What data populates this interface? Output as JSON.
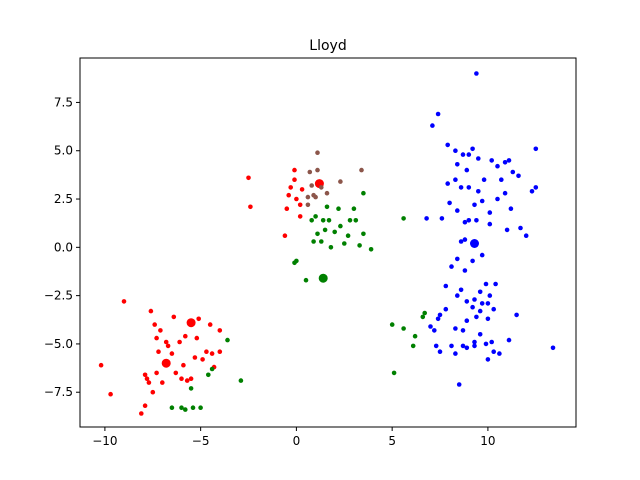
{
  "chart_data": {
    "type": "scatter",
    "title": "Lloyd",
    "xlabel": "",
    "ylabel": "",
    "xlim": [
      -11.3,
      14.6
    ],
    "ylim": [
      -9.3,
      9.8
    ],
    "xticks": [
      -10,
      -5,
      0,
      5,
      10
    ],
    "yticks": [
      -7.5,
      -5.0,
      -2.5,
      0.0,
      2.5,
      5.0,
      7.5
    ],
    "xtick_labels": [
      "−10",
      "−5",
      "0",
      "5",
      "10"
    ],
    "ytick_labels": [
      "−7.5",
      "−5.0",
      "−2.5",
      "0.0",
      "2.5",
      "5.0",
      "7.5"
    ],
    "grid": false,
    "series": [
      {
        "color": "#ff0000",
        "points": [
          [
            -9.0,
            -2.8
          ],
          [
            -10.2,
            -6.1
          ],
          [
            -9.7,
            -7.6
          ],
          [
            -8.1,
            -8.6
          ],
          [
            -7.9,
            -8.2
          ],
          [
            -7.9,
            -6.6
          ],
          [
            -7.7,
            -7.0
          ],
          [
            -7.5,
            -7.5
          ],
          [
            -7.8,
            -6.8
          ],
          [
            -7.6,
            -3.3
          ],
          [
            -7.4,
            -4.0
          ],
          [
            -7.3,
            -4.7
          ],
          [
            -7.2,
            -5.4
          ],
          [
            -7.3,
            -6.5
          ],
          [
            -7.0,
            -7.0
          ],
          [
            -7.1,
            -4.3
          ],
          [
            -6.8,
            -4.9
          ],
          [
            -6.5,
            -5.5
          ],
          [
            -6.4,
            -3.6
          ],
          [
            -6.7,
            -5.1
          ],
          [
            -6.3,
            -6.5
          ],
          [
            -6.0,
            -6.8
          ],
          [
            -5.9,
            -6.1
          ],
          [
            -6.1,
            -4.9
          ],
          [
            -5.8,
            -4.6
          ],
          [
            -5.7,
            -6.9
          ],
          [
            -5.5,
            -6.8
          ],
          [
            -5.3,
            -5.7
          ],
          [
            -5.2,
            -4.7
          ],
          [
            -5.1,
            -3.7
          ],
          [
            -4.9,
            -5.8
          ],
          [
            -4.7,
            -5.4
          ],
          [
            -4.5,
            -4.0
          ],
          [
            -4.4,
            -5.5
          ],
          [
            -4.3,
            -6.2
          ],
          [
            -4.0,
            -5.4
          ],
          [
            -4.0,
            -4.3
          ],
          [
            -2.5,
            3.6
          ],
          [
            -2.4,
            2.1
          ],
          [
            -0.6,
            0.6
          ],
          [
            -0.4,
            2.7
          ],
          [
            -0.5,
            2.0
          ],
          [
            -0.3,
            3.1
          ],
          [
            -0.1,
            4.0
          ],
          [
            0.0,
            2.5
          ],
          [
            0.2,
            1.6
          ],
          [
            0.2,
            2.2
          ],
          [
            0.3,
            3.0
          ],
          [
            -0.1,
            3.5
          ]
        ],
        "centroids": [
          [
            -5.5,
            -3.9
          ],
          [
            -6.8,
            -6.0
          ],
          [
            1.2,
            3.3
          ]
        ]
      },
      {
        "color": "#008000",
        "points": [
          [
            0.0,
            -0.7
          ],
          [
            -0.1,
            -0.8
          ],
          [
            0.5,
            -1.7
          ],
          [
            0.8,
            1.4
          ],
          [
            0.9,
            0.3
          ],
          [
            1.0,
            1.6
          ],
          [
            1.1,
            0.7
          ],
          [
            1.3,
            0.3
          ],
          [
            1.4,
            1.4
          ],
          [
            1.5,
            0.9
          ],
          [
            1.6,
            2.1
          ],
          [
            1.7,
            1.4
          ],
          [
            1.8,
            0.0
          ],
          [
            2.0,
            0.8
          ],
          [
            2.2,
            2.0
          ],
          [
            2.3,
            1.1
          ],
          [
            2.5,
            0.2
          ],
          [
            2.7,
            0.6
          ],
          [
            2.8,
            1.4
          ],
          [
            3.0,
            2.0
          ],
          [
            3.1,
            1.4
          ],
          [
            3.3,
            0.1
          ],
          [
            3.5,
            0.7
          ],
          [
            3.5,
            2.8
          ],
          [
            3.9,
            -0.1
          ],
          [
            5.6,
            1.5
          ],
          [
            5.0,
            -4.0
          ],
          [
            5.1,
            -6.5
          ],
          [
            5.6,
            -4.2
          ],
          [
            6.2,
            -4.6
          ],
          [
            6.1,
            -5.1
          ],
          [
            6.6,
            -3.6
          ],
          [
            6.7,
            -3.4
          ],
          [
            -6.5,
            -8.3
          ],
          [
            -6.0,
            -8.3
          ],
          [
            -5.8,
            -8.4
          ],
          [
            -5.5,
            -7.3
          ],
          [
            -5.4,
            -8.3
          ],
          [
            -5.0,
            -8.3
          ],
          [
            -4.6,
            -6.6
          ],
          [
            -4.4,
            -6.3
          ],
          [
            -3.6,
            -4.8
          ],
          [
            -2.9,
            -6.9
          ]
        ],
        "centroids": [
          [
            1.4,
            -1.6
          ]
        ]
      },
      {
        "color": "#0000ff",
        "points": [
          [
            9.4,
            9.0
          ],
          [
            7.4,
            6.9
          ],
          [
            7.1,
            6.3
          ],
          [
            7.9,
            5.3
          ],
          [
            8.3,
            5.0
          ],
          [
            8.4,
            4.3
          ],
          [
            8.7,
            4.8
          ],
          [
            9.0,
            4.8
          ],
          [
            8.9,
            4.0
          ],
          [
            9.2,
            5.1
          ],
          [
            9.5,
            4.6
          ],
          [
            9.8,
            3.5
          ],
          [
            10.2,
            4.5
          ],
          [
            10.5,
            4.2
          ],
          [
            10.9,
            4.4
          ],
          [
            11.1,
            4.5
          ],
          [
            11.3,
            3.9
          ],
          [
            12.5,
            5.1
          ],
          [
            12.5,
            3.1
          ],
          [
            12.3,
            2.9
          ],
          [
            11.6,
            3.7
          ],
          [
            10.9,
            2.8
          ],
          [
            10.7,
            3.5
          ],
          [
            10.5,
            2.5
          ],
          [
            10.1,
            1.8
          ],
          [
            9.7,
            2.4
          ],
          [
            9.5,
            2.9
          ],
          [
            9.3,
            2.2
          ],
          [
            9.0,
            1.4
          ],
          [
            8.8,
            1.3
          ],
          [
            8.4,
            1.9
          ],
          [
            8.0,
            2.3
          ],
          [
            7.9,
            3.3
          ],
          [
            8.3,
            3.5
          ],
          [
            8.6,
            3.1
          ],
          [
            9.0,
            3.1
          ],
          [
            7.6,
            1.5
          ],
          [
            6.8,
            1.5
          ],
          [
            11.2,
            2.0
          ],
          [
            11.7,
            1.0
          ],
          [
            12.0,
            0.6
          ],
          [
            11.0,
            0.9
          ],
          [
            10.1,
            1.2
          ],
          [
            9.4,
            1.4
          ],
          [
            8.8,
            0.4
          ],
          [
            8.4,
            -0.6
          ],
          [
            8.6,
            0.3
          ],
          [
            9.2,
            -0.7
          ],
          [
            9.7,
            -0.4
          ],
          [
            8.1,
            -1.0
          ],
          [
            8.8,
            -1.2
          ],
          [
            7.8,
            -2.0
          ],
          [
            8.4,
            -2.5
          ],
          [
            8.6,
            -2.2
          ],
          [
            8.9,
            -2.8
          ],
          [
            9.3,
            -2.7
          ],
          [
            9.6,
            -2.3
          ],
          [
            9.9,
            -1.9
          ],
          [
            10.4,
            -1.9
          ],
          [
            10.1,
            -2.5
          ],
          [
            10.0,
            -3.7
          ],
          [
            9.6,
            -3.3
          ],
          [
            9.4,
            -3.6
          ],
          [
            8.9,
            -3.8
          ],
          [
            8.7,
            -4.3
          ],
          [
            8.3,
            -4.2
          ],
          [
            8.1,
            -5.1
          ],
          [
            7.8,
            -3.2
          ],
          [
            7.5,
            -3.5
          ],
          [
            7.2,
            -4.3
          ],
          [
            7.3,
            -5.1
          ],
          [
            7.5,
            -5.4
          ],
          [
            8.3,
            -5.5
          ],
          [
            8.7,
            -5.1
          ],
          [
            9.3,
            -4.9
          ],
          [
            9.6,
            -4.5
          ],
          [
            9.9,
            -5.0
          ],
          [
            10.2,
            -4.9
          ],
          [
            10.3,
            -5.4
          ],
          [
            10.6,
            -5.5
          ],
          [
            11.1,
            -4.8
          ],
          [
            11.5,
            -3.5
          ],
          [
            13.4,
            -5.2
          ],
          [
            8.5,
            -7.1
          ],
          [
            10.0,
            -5.8
          ],
          [
            9.3,
            -5.1
          ],
          [
            8.9,
            -5.2
          ],
          [
            9.7,
            -2.9
          ],
          [
            9.2,
            -3.1
          ],
          [
            10.3,
            -3.2
          ],
          [
            10.0,
            -2.9
          ],
          [
            7.4,
            -3.7
          ],
          [
            7.0,
            -4.1
          ]
        ],
        "centroids": [
          [
            9.3,
            0.2
          ]
        ]
      },
      {
        "color": "#8c564b",
        "points": [
          [
            0.6,
            2.2
          ],
          [
            0.6,
            2.6
          ],
          [
            0.7,
            3.9
          ],
          [
            0.8,
            3.2
          ],
          [
            0.9,
            2.7
          ],
          [
            1.0,
            2.6
          ],
          [
            1.1,
            4.0
          ],
          [
            1.1,
            4.9
          ],
          [
            1.3,
            3.1
          ],
          [
            1.6,
            2.8
          ],
          [
            2.3,
            3.4
          ],
          [
            3.4,
            4.0
          ]
        ],
        "centroids": []
      }
    ]
  }
}
